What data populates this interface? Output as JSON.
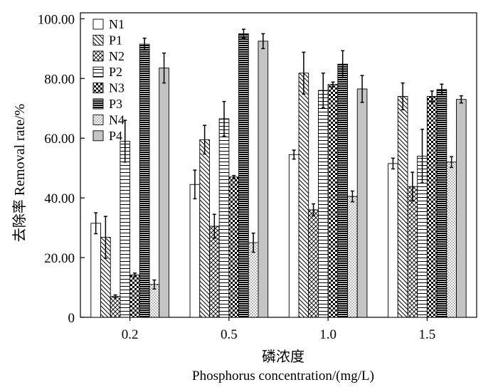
{
  "chart_data": {
    "type": "bar",
    "title": "",
    "xlabel_cn": "磷浓度",
    "xlabel_en": "Phosphorus concentration/(mg/L)",
    "ylabel": "去除率 Removal rate/%",
    "ylim": [
      0,
      102
    ],
    "yticks": [
      0,
      20,
      40,
      60,
      80,
      100
    ],
    "ytick_labels": [
      "0",
      "20.00",
      "40.00",
      "60.00",
      "80.00",
      "100.00"
    ],
    "categories": [
      "0.2",
      "0.5",
      "1.0",
      "1.5"
    ],
    "legend_position": "top-left-inside",
    "grid": false,
    "series": [
      {
        "name": "N1",
        "pattern": "white",
        "values": [
          31.5,
          44.5,
          54.5,
          51.5
        ],
        "errors": [
          3.5,
          4.8,
          1.5,
          1.8
        ]
      },
      {
        "name": "P1",
        "pattern": "diag-back",
        "values": [
          26.8,
          59.5,
          81.8,
          74.0
        ],
        "errors": [
          7.0,
          4.8,
          7.0,
          4.5
        ]
      },
      {
        "name": "N2",
        "pattern": "crosshatch",
        "values": [
          7.0,
          30.5,
          36.0,
          43.8
        ],
        "errors": [
          0.5,
          4.0,
          2.0,
          4.8
        ]
      },
      {
        "name": "P2",
        "pattern": "horiz",
        "values": [
          59.0,
          66.5,
          76.0,
          54.0
        ],
        "errors": [
          7.0,
          5.8,
          5.8,
          9.0
        ]
      },
      {
        "name": "N3",
        "pattern": "checker",
        "values": [
          14.2,
          47.0,
          78.0,
          74.0
        ],
        "errors": [
          0.6,
          0.5,
          0.8,
          1.8
        ]
      },
      {
        "name": "P3",
        "pattern": "dense-horiz",
        "values": [
          91.5,
          95.0,
          84.8,
          76.3
        ],
        "errors": [
          2.0,
          1.5,
          4.5,
          1.8
        ]
      },
      {
        "name": "N4",
        "pattern": "dots",
        "values": [
          11.0,
          25.0,
          40.5,
          52.0
        ],
        "errors": [
          1.5,
          3.2,
          1.8,
          1.8
        ]
      },
      {
        "name": "P4",
        "pattern": "gray",
        "values": [
          83.5,
          92.5,
          76.5,
          73.0
        ],
        "errors": [
          5.0,
          2.5,
          4.5,
          1.2
        ]
      }
    ]
  }
}
